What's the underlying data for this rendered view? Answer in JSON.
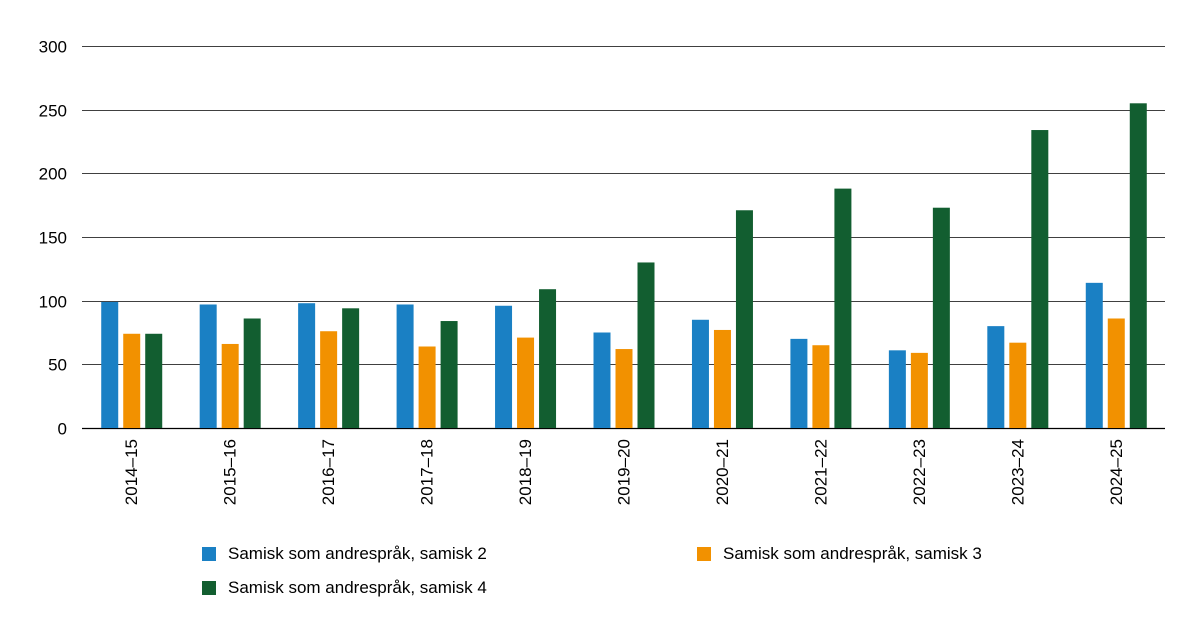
{
  "chart_data": {
    "type": "bar",
    "title": "",
    "xlabel": "",
    "ylabel": "",
    "ylim": [
      0,
      300
    ],
    "yticks": [
      0,
      50,
      100,
      150,
      200,
      250,
      300
    ],
    "grid": true,
    "legend_position": "bottom",
    "categories": [
      "2014–15",
      "2015–16",
      "2016–17",
      "2017–18",
      "2018–19",
      "2019–20",
      "2020–21",
      "2021–22",
      "2022–23",
      "2023–24",
      "2024–25"
    ],
    "series": [
      {
        "name": "Samisk som andrespråk, samisk 2",
        "color": "#1a80c4",
        "values": [
          99,
          97,
          98,
          97,
          96,
          75,
          85,
          70,
          61,
          80,
          114
        ]
      },
      {
        "name": "Samisk som andrespråk, samisk 3",
        "color": "#f29100",
        "values": [
          74,
          66,
          76,
          64,
          71,
          62,
          77,
          65,
          59,
          67,
          86
        ]
      },
      {
        "name": "Samisk som andrespråk, samisk 4",
        "color": "#125e30",
        "values": [
          74,
          86,
          94,
          84,
          109,
          130,
          171,
          188,
          173,
          234,
          255
        ]
      }
    ]
  }
}
